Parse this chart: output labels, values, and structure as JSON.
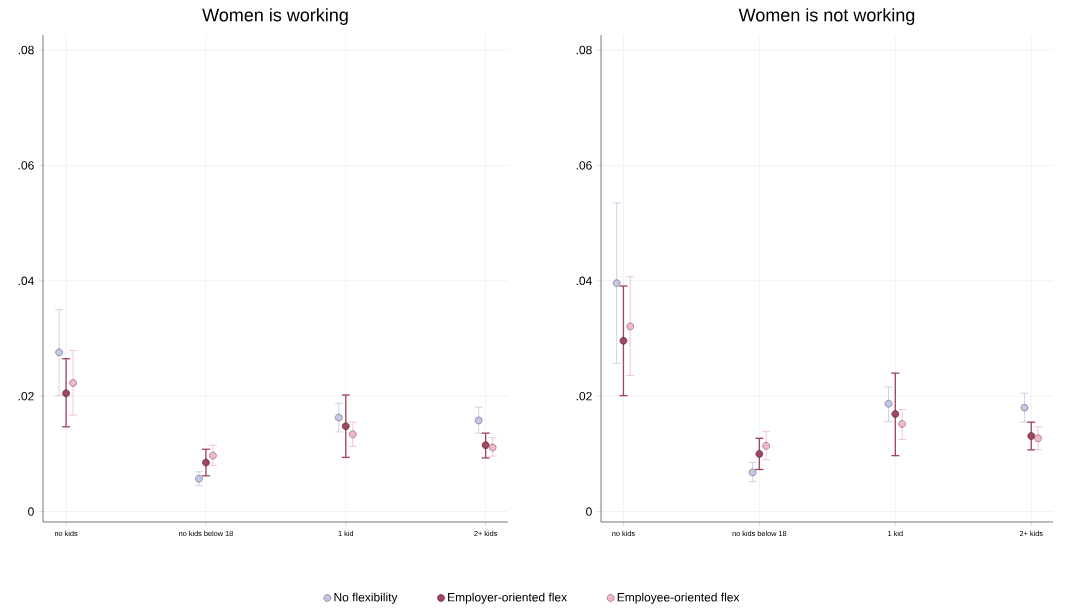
{
  "chart_data": [
    {
      "type": "scatter",
      "title": "Women is working",
      "categories": [
        "no kids",
        "no kids below 18",
        "1 kid",
        "2+ kids"
      ],
      "ylim": [
        -0.0018,
        0.0826
      ],
      "yticks": [
        0,
        {
          "value": 0.02,
          "label": ".02"
        },
        {
          "value": 0.04,
          "label": ".04"
        },
        {
          "value": 0.06,
          "label": ".06"
        },
        {
          "value": 0.08,
          "label": ".08"
        }
      ],
      "grid": true,
      "marker": "circle",
      "legend": "bottom",
      "series": [
        {
          "name": "No flexibility",
          "color": "#c5c5e6",
          "values": [
            0.0276,
            0.0057,
            0.0163,
            0.0158
          ],
          "errors": [
            [
              0.0201,
              0.035
            ],
            [
              0.0045,
              0.0069
            ],
            [
              0.0138,
              0.0188
            ],
            [
              0.0136,
              0.0181
            ]
          ]
        },
        {
          "name": "Employer-oriented flex",
          "color": "#a0465e",
          "values": [
            0.0205,
            0.0085,
            0.0148,
            0.0115
          ],
          "errors": [
            [
              0.0147,
              0.0265
            ],
            [
              0.0062,
              0.0108
            ],
            [
              0.0094,
              0.0202
            ],
            [
              0.0093,
              0.0136
            ]
          ]
        },
        {
          "name": "Employee-oriented flex",
          "color": "#f2b8c6",
          "values": [
            0.0223,
            0.0097,
            0.0134,
            0.0111
          ],
          "errors": [
            [
              0.0167,
              0.0279
            ],
            [
              0.008,
              0.0115
            ],
            [
              0.0113,
              0.0155
            ],
            [
              0.0096,
              0.0128
            ]
          ]
        }
      ]
    },
    {
      "type": "scatter",
      "title": "Women is not working",
      "categories": [
        "no kids",
        "no kids below 18",
        "1 kid",
        "2+ kids"
      ],
      "ylim": [
        -0.0018,
        0.0826
      ],
      "yticks": [
        0,
        {
          "value": 0.02,
          "label": ".02"
        },
        {
          "value": 0.04,
          "label": ".04"
        },
        {
          "value": 0.06,
          "label": ".06"
        },
        {
          "value": 0.08,
          "label": ".08"
        }
      ],
      "grid": true,
      "marker": "circle",
      "series": [
        {
          "color": "#c5c5e6",
          "values": [
            0.0396,
            0.0068,
            0.0187,
            0.018
          ],
          "errors": [
            [
              0.0257,
              0.0535
            ],
            [
              0.0052,
              0.0085
            ],
            [
              0.0156,
              0.0216
            ],
            [
              0.0155,
              0.0205
            ]
          ]
        },
        {
          "color": "#a0465e",
          "values": [
            0.0296,
            0.01,
            0.0169,
            0.0131
          ],
          "errors": [
            [
              0.0201,
              0.0391
            ],
            [
              0.0073,
              0.0127
            ],
            [
              0.0097,
              0.024
            ],
            [
              0.0107,
              0.0155
            ]
          ]
        },
        {
          "color": "#f2b8c6",
          "values": [
            0.0321,
            0.0114,
            0.0152,
            0.0127
          ],
          "errors": [
            [
              0.0236,
              0.0407
            ],
            [
              0.009,
              0.0139
            ],
            [
              0.0125,
              0.0177
            ],
            [
              0.0107,
              0.0147
            ]
          ]
        }
      ]
    }
  ]
}
